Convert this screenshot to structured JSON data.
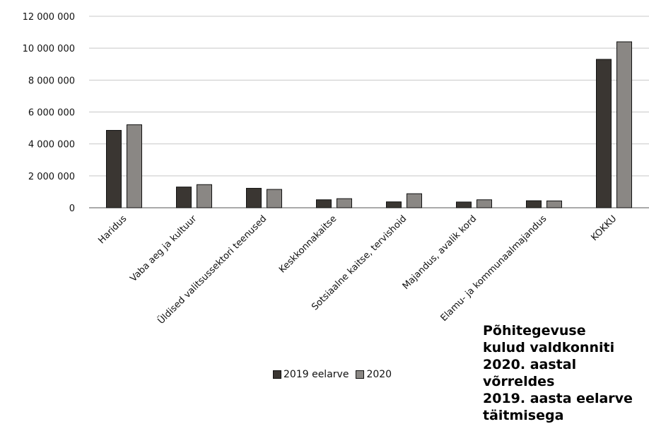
{
  "chart_data": {
    "type": "bar",
    "categories": [
      "Haridus",
      "Vaba aeg ja kultuur",
      "Üldised valitsussektori teenused",
      "Keskkonnakaitse",
      "Sotsiaalne kaitse, tervishoid",
      "Majandus, avalik kord",
      "Elamu- ja kommunaalmajandus",
      "KOKKU"
    ],
    "series": [
      {
        "name": "2019 eelarve",
        "color": "#3a3632",
        "values": [
          4850000,
          1300000,
          1220000,
          500000,
          370000,
          360000,
          440000,
          9300000
        ]
      },
      {
        "name": "2020",
        "color": "#8a8784",
        "values": [
          5200000,
          1450000,
          1150000,
          570000,
          880000,
          500000,
          430000,
          10400000
        ]
      }
    ],
    "yticks": [
      "0",
      "2 000 000",
      "4 000 000",
      "6 000 000",
      "8 000 000",
      "10 000 000",
      "12 000 000"
    ],
    "ylim": [
      0,
      12000000
    ],
    "grid": true,
    "legend": "bottom",
    "title": "Põhitegevuse kulud valdkonniti 2020. aastal võrreldes 2019. aasta eelarve täitmisega"
  },
  "caption_text": "Põhitegevuse\nkulud valdkonniti\n2020. aastal võrreldes\n2019. aasta eelarve\ntäitmisega"
}
